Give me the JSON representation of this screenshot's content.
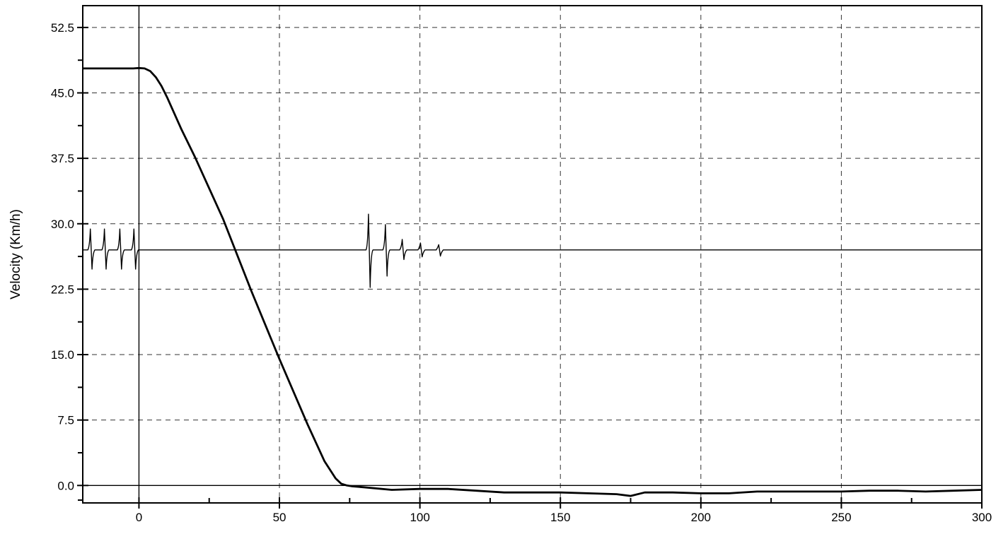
{
  "chart_data": {
    "type": "line",
    "title": "",
    "xlabel": "",
    "ylabel": "Velocity (Km/h)",
    "xlim": [
      -20,
      300
    ],
    "ylim": [
      -2,
      55
    ],
    "x_ticks": [
      0,
      50,
      100,
      150,
      200,
      250,
      300
    ],
    "y_ticks": [
      0.0,
      7.5,
      15.0,
      22.5,
      30.0,
      37.5,
      45.0,
      52.5
    ],
    "x_tick_labels": [
      "0",
      "50",
      "100",
      "150",
      "200",
      "250",
      "300"
    ],
    "y_tick_labels": [
      "0.0",
      "7.5",
      "15.0",
      "22.5",
      "30.0",
      "37.5",
      "45.0",
      "52.5"
    ],
    "grid": true,
    "reference_lines": [
      {
        "axis": "x",
        "value": 0
      },
      {
        "axis": "y",
        "value": 0
      }
    ],
    "series": [
      {
        "style": "thick",
        "x": [
          -20,
          -10,
          -2,
          0,
          2,
          4,
          6,
          8,
          10,
          15,
          20,
          30,
          40,
          50,
          60,
          66,
          70,
          72,
          74,
          76,
          80,
          90,
          100,
          110,
          120,
          130,
          140,
          150,
          160,
          170,
          175,
          180,
          190,
          200,
          210,
          220,
          230,
          240,
          250,
          260,
          270,
          280,
          290,
          300
        ],
        "y": [
          47.8,
          47.8,
          47.8,
          47.85,
          47.8,
          47.5,
          46.8,
          45.8,
          44.5,
          40.9,
          37.6,
          30.5,
          22.3,
          14.5,
          7.0,
          2.8,
          0.8,
          0.2,
          0.0,
          -0.1,
          -0.2,
          -0.5,
          -0.4,
          -0.4,
          -0.6,
          -0.8,
          -0.8,
          -0.8,
          -0.9,
          -1.0,
          -1.2,
          -0.8,
          -0.8,
          -0.9,
          -0.9,
          -0.7,
          -0.7,
          -0.7,
          -0.7,
          -0.6,
          -0.6,
          -0.7,
          -0.6,
          -0.5
        ]
      },
      {
        "style": "thin",
        "baseline": 27.0,
        "x_range": [
          -20,
          300
        ],
        "pulses": [
          {
            "x": -17.0,
            "up": 29.4,
            "down": 24.8
          },
          {
            "x": -12.0,
            "up": 29.4,
            "down": 24.8
          },
          {
            "x": -6.5,
            "up": 29.4,
            "down": 24.8
          },
          {
            "x": -1.5,
            "up": 29.4,
            "down": 24.8
          },
          {
            "x": 82.0,
            "up": 31.1,
            "down": 22.7
          },
          {
            "x": 88.0,
            "up": 29.9,
            "down": 24.0
          },
          {
            "x": 94.0,
            "up": 28.2,
            "down": 25.9
          },
          {
            "x": 100.5,
            "up": 27.8,
            "down": 26.2
          },
          {
            "x": 107.0,
            "up": 27.6,
            "down": 26.3
          }
        ]
      }
    ]
  }
}
